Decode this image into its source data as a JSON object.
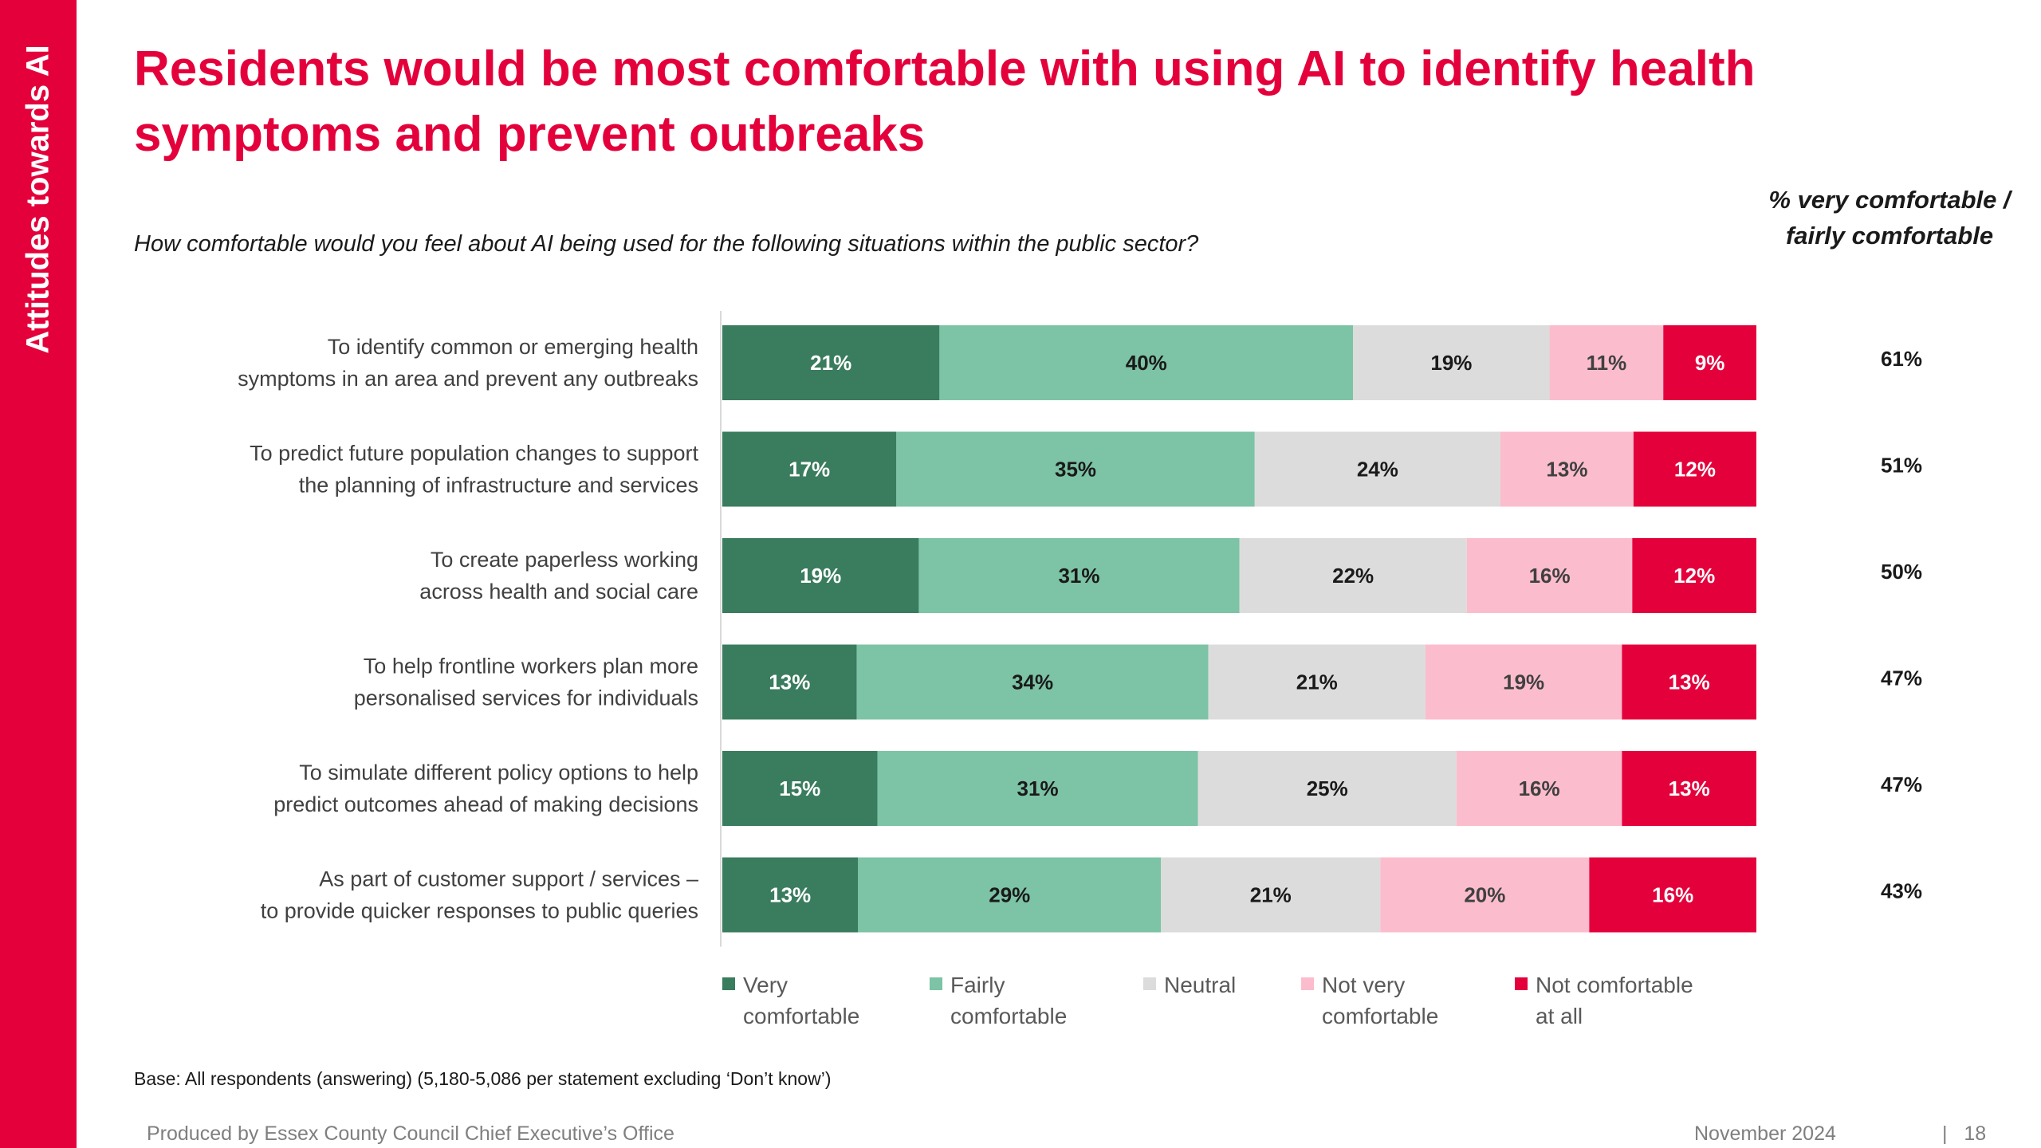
{
  "sidebar": {
    "title": "Attitudes towards AI"
  },
  "headline": "Residents would be most comfortable with using AI to identify health symptoms and prevent outbreaks",
  "question": "How comfortable would you feel about AI being used for the following situations within the public sector?",
  "comfort_header": "% very comfortable / fairly comfortable",
  "base_note": "Base: All respondents (answering) (5,180-5,086 per statement excluding ‘Don’t know’)",
  "footer": {
    "producer": "Produced by Essex County Council Chief Executive’s Office",
    "date": "November 2024",
    "page": "|   18"
  },
  "colors": {
    "accent": "#e4003b",
    "very_comfortable": "#3a7c5e",
    "fairly_comfortable": "#7dc3a6",
    "neutral": "#dcdcdc",
    "not_very_comfortable": "#fbbdcd",
    "not_comfortable_at_all": "#e4003b"
  },
  "chart_data": {
    "type": "bar",
    "orientation": "horizontal",
    "stacked": true,
    "xlim": [
      0,
      100
    ],
    "legend_position": "bottom",
    "categories": [
      "To identify common or emerging health symptoms in an area and prevent any outbreaks",
      "To predict future population changes to support the planning of infrastructure and services",
      "To create paperless working across health and social care",
      "To help frontline workers plan more personalised services for individuals",
      "To simulate different policy options to help predict outcomes ahead of making decisions",
      "As part of customer support / services – to provide quicker responses to public queries"
    ],
    "category_lines": [
      [
        "To identify common or emerging health",
        "symptoms in an area and prevent any outbreaks"
      ],
      [
        "To predict future population changes to support",
        "the planning of infrastructure and services"
      ],
      [
        "To create paperless working",
        "across health and social care"
      ],
      [
        "To help frontline workers plan more",
        "personalised services for individuals"
      ],
      [
        "To simulate different policy options to help",
        "predict outcomes ahead of making decisions"
      ],
      [
        "As part of customer support / services –",
        "to provide quicker responses to public queries"
      ]
    ],
    "series": [
      {
        "name": "Very comfortable",
        "name_lines": [
          "Very",
          "comfortable"
        ],
        "color": "#3a7c5e",
        "label_color": "#ffffff",
        "values": [
          21,
          17,
          19,
          13,
          15,
          13
        ]
      },
      {
        "name": "Fairly comfortable",
        "name_lines": [
          "Fairly",
          "comfortable"
        ],
        "color": "#7dc3a6",
        "label_color": "#1a1a1a",
        "values": [
          40,
          35,
          31,
          34,
          31,
          29
        ]
      },
      {
        "name": "Neutral",
        "name_lines": [
          "Neutral"
        ],
        "color": "#dcdcdc",
        "label_color": "#1a1a1a",
        "values": [
          19,
          24,
          22,
          21,
          25,
          21
        ]
      },
      {
        "name": "Not very comfortable",
        "name_lines": [
          "Not very",
          "comfortable"
        ],
        "color": "#fbbdcd",
        "label_color": "#404040",
        "values": [
          11,
          13,
          16,
          19,
          16,
          20
        ]
      },
      {
        "name": "Not comfortable at all",
        "name_lines": [
          "Not comfortable",
          "at all"
        ],
        "color": "#e4003b",
        "label_color": "#ffffff",
        "values": [
          9,
          12,
          12,
          13,
          13,
          16
        ]
      }
    ],
    "comfortable_totals": [
      61,
      51,
      50,
      47,
      47,
      43
    ],
    "value_suffix": "%"
  }
}
